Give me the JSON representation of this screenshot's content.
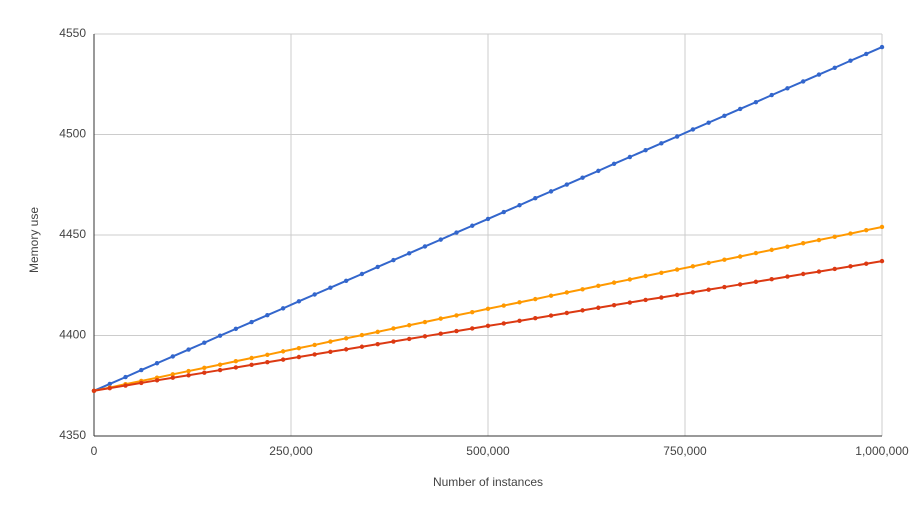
{
  "chart_data": {
    "type": "line",
    "x_label": "Number of instances",
    "y_label": "Memory use",
    "x": [
      0,
      20000,
      40000,
      60000,
      80000,
      100000,
      120000,
      140000,
      160000,
      180000,
      200000,
      220000,
      240000,
      260000,
      280000,
      300000,
      320000,
      340000,
      360000,
      380000,
      400000,
      420000,
      440000,
      460000,
      480000,
      500000,
      520000,
      540000,
      560000,
      580000,
      600000,
      620000,
      640000,
      660000,
      680000,
      700000,
      720000,
      740000,
      760000,
      780000,
      800000,
      820000,
      840000,
      860000,
      880000,
      900000,
      920000,
      940000,
      960000,
      980000,
      1000000
    ],
    "series": [
      {
        "color": "#3366cc",
        "values": [
          4372.5,
          4375.9,
          4379.3,
          4382.8,
          4386.2,
          4389.6,
          4393.0,
          4396.4,
          4399.9,
          4403.3,
          4406.7,
          4410.1,
          4413.5,
          4417.0,
          4420.4,
          4423.8,
          4427.2,
          4430.6,
          4434.1,
          4437.5,
          4440.9,
          4444.3,
          4447.7,
          4451.2,
          4454.6,
          4458.0,
          4461.4,
          4464.8,
          4468.3,
          4471.7,
          4475.1,
          4478.5,
          4481.9,
          4485.4,
          4488.8,
          4492.2,
          4495.6,
          4499.0,
          4502.5,
          4505.9,
          4509.3,
          4512.7,
          4516.1,
          4519.6,
          4523.0,
          4526.4,
          4529.8,
          4533.2,
          4536.7,
          4540.1,
          4543.5
        ]
      },
      {
        "color": "#ff9900",
        "values": [
          4372.5,
          4374.1,
          4375.8,
          4377.4,
          4379.0,
          4380.7,
          4382.3,
          4383.9,
          4385.5,
          4387.2,
          4388.8,
          4390.4,
          4392.1,
          4393.7,
          4395.3,
          4397.0,
          4398.6,
          4400.2,
          4401.8,
          4403.5,
          4405.1,
          4406.7,
          4408.4,
          4410.0,
          4411.6,
          4413.3,
          4414.9,
          4416.5,
          4418.1,
          4419.8,
          4421.4,
          4423.0,
          4424.7,
          4426.3,
          4427.9,
          4429.6,
          4431.2,
          4432.8,
          4434.4,
          4436.1,
          4437.7,
          4439.3,
          4441.0,
          4442.6,
          4444.2,
          4445.9,
          4447.5,
          4449.1,
          4450.7,
          4452.4,
          4454.0
        ]
      },
      {
        "color": "#dc3912",
        "values": [
          4372.5,
          4373.8,
          4375.1,
          4376.4,
          4377.7,
          4379.0,
          4380.2,
          4381.5,
          4382.8,
          4384.1,
          4385.4,
          4386.7,
          4388.0,
          4389.3,
          4390.6,
          4391.9,
          4393.1,
          4394.4,
          4395.7,
          4397.0,
          4398.3,
          4399.6,
          4400.9,
          4402.2,
          4403.5,
          4404.8,
          4406.0,
          4407.3,
          4408.6,
          4409.9,
          4411.2,
          4412.5,
          4413.8,
          4415.1,
          4416.4,
          4417.7,
          4418.9,
          4420.2,
          4421.5,
          4422.8,
          4424.1,
          4425.4,
          4426.7,
          4428.0,
          4429.3,
          4430.6,
          4431.8,
          4433.1,
          4434.4,
          4435.7,
          4437.0
        ]
      }
    ],
    "xlim": [
      0,
      1000000
    ],
    "xticks": [
      0,
      {
        "value": 250000,
        "label": "250,000"
      },
      {
        "value": 500000,
        "label": "500,000"
      },
      {
        "value": 750000,
        "label": "750,000"
      },
      {
        "value": 1000000,
        "label": "1,000,000"
      }
    ],
    "ylim": [
      4350,
      4550
    ],
    "yticks": [
      4350,
      4400,
      4450,
      4500,
      4550
    ],
    "grid": true
  }
}
